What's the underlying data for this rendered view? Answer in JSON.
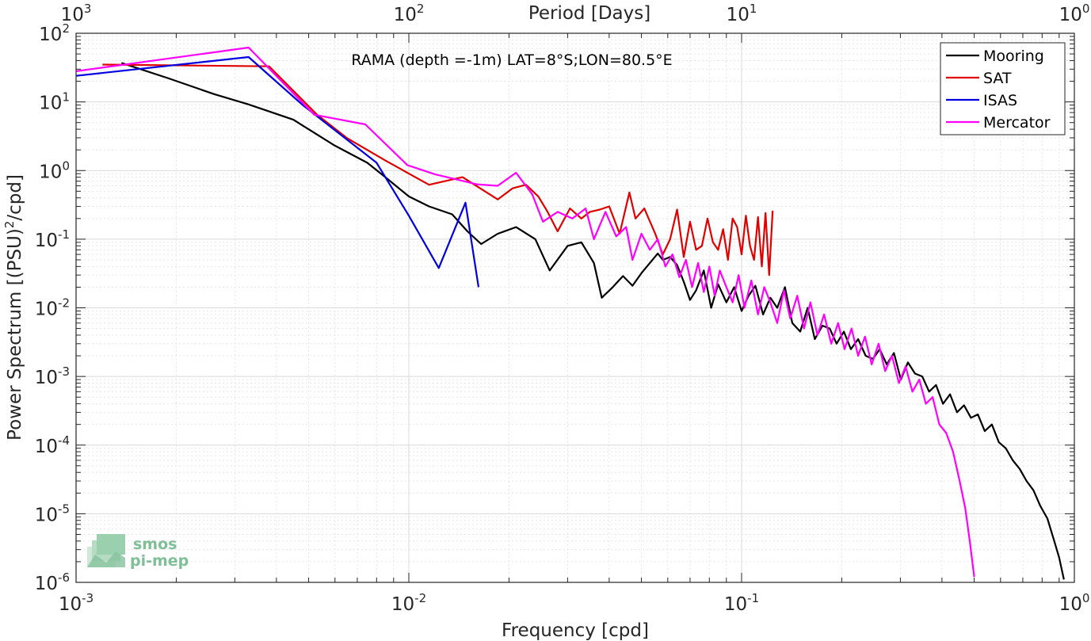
{
  "chart_data": {
    "type": "line",
    "title": "",
    "annotation": "RAMA (depth =-1m) LAT=8°S;LON=80.5°E",
    "xlabel": "Frequency [cpd]",
    "ylabel_pre": "Power Spectrum [(PSU)",
    "ylabel_sup": "2",
    "ylabel_post": "/cpd]",
    "top_xlabel": "Period [Days]",
    "xscale": "log",
    "yscale": "log",
    "xlim": [
      0.001,
      1
    ],
    "ylim": [
      1e-06,
      100
    ],
    "grid": true,
    "legend_position": "top-right",
    "x_ticks": [
      {
        "value": 0.001,
        "base": "10",
        "exp": "-3"
      },
      {
        "value": 0.01,
        "base": "10",
        "exp": "-2"
      },
      {
        "value": 0.1,
        "base": "10",
        "exp": "-1"
      },
      {
        "value": 1,
        "base": "10",
        "exp": "0"
      }
    ],
    "y_ticks": [
      {
        "value": 100,
        "base": "10",
        "exp": "2"
      },
      {
        "value": 10,
        "base": "10",
        "exp": "1"
      },
      {
        "value": 1,
        "base": "10",
        "exp": "0"
      },
      {
        "value": 0.1,
        "base": "10",
        "exp": "-1"
      },
      {
        "value": 0.01,
        "base": "10",
        "exp": "-2"
      },
      {
        "value": 0.001,
        "base": "10",
        "exp": "-3"
      },
      {
        "value": 0.0001,
        "base": "10",
        "exp": "-4"
      },
      {
        "value": 1e-05,
        "base": "10",
        "exp": "-5"
      },
      {
        "value": 1e-06,
        "base": "10",
        "exp": "-6"
      }
    ],
    "top_ticks": [
      {
        "value": 1000,
        "base": "10",
        "exp": "3"
      },
      {
        "value": 100,
        "base": "10",
        "exp": "2"
      },
      {
        "value": 10,
        "base": "10",
        "exp": "1"
      },
      {
        "value": 1,
        "base": "10",
        "exp": "0"
      }
    ],
    "series": [
      {
        "name": "Mooring",
        "color": "#000000",
        "x": [
          0.00137,
          0.0019,
          0.0026,
          0.0033,
          0.0045,
          0.006,
          0.0075,
          0.0085,
          0.01,
          0.0115,
          0.0135,
          0.015,
          0.0165,
          0.0185,
          0.021,
          0.024,
          0.0265,
          0.03,
          0.033,
          0.036,
          0.038,
          0.041,
          0.044,
          0.047,
          0.05,
          0.053,
          0.056,
          0.058,
          0.061,
          0.064,
          0.067,
          0.07,
          0.073,
          0.077,
          0.081,
          0.085,
          0.09,
          0.095,
          0.1,
          0.105,
          0.11,
          0.116,
          0.122,
          0.128,
          0.135,
          0.142,
          0.15,
          0.158,
          0.166,
          0.175,
          0.184,
          0.193,
          0.203,
          0.213,
          0.224,
          0.236,
          0.248,
          0.26,
          0.273,
          0.287,
          0.301,
          0.316,
          0.332,
          0.349,
          0.366,
          0.384,
          0.403,
          0.423,
          0.444,
          0.466,
          0.489,
          0.513,
          0.538,
          0.565,
          0.593,
          0.622,
          0.653,
          0.685,
          0.718,
          0.753,
          0.79,
          0.83,
          0.87,
          0.9,
          0.93
        ],
        "y": [
          37,
          22,
          13,
          9.2,
          5.5,
          2.3,
          1.3,
          0.8,
          0.42,
          0.3,
          0.23,
          0.13,
          0.085,
          0.12,
          0.15,
          0.1,
          0.035,
          0.08,
          0.09,
          0.045,
          0.014,
          0.02,
          0.029,
          0.021,
          0.032,
          0.045,
          0.062,
          0.05,
          0.055,
          0.042,
          0.024,
          0.013,
          0.018,
          0.035,
          0.01,
          0.022,
          0.012,
          0.02,
          0.009,
          0.015,
          0.021,
          0.008,
          0.014,
          0.01,
          0.02,
          0.006,
          0.0045,
          0.01,
          0.0035,
          0.0055,
          0.005,
          0.003,
          0.0045,
          0.0025,
          0.0035,
          0.002,
          0.0018,
          0.0025,
          0.0015,
          0.0022,
          0.0009,
          0.0016,
          0.0011,
          0.001,
          0.0006,
          0.00075,
          0.0004,
          0.00055,
          0.0003,
          0.00038,
          0.00025,
          0.00028,
          0.00016,
          0.0002,
          0.00011,
          9e-05,
          6e-05,
          4.5e-05,
          3e-05,
          2.2e-05,
          1.3e-05,
          8.5e-06,
          4e-06,
          2.3e-06,
          1.1e-06
        ]
      },
      {
        "name": "SAT",
        "color": "#e00000",
        "x": [
          0.0012,
          0.0038,
          0.0053,
          0.0065,
          0.0085,
          0.0115,
          0.0145,
          0.0185,
          0.0205,
          0.0225,
          0.0245,
          0.026,
          0.028,
          0.0305,
          0.033,
          0.035,
          0.0375,
          0.04,
          0.043,
          0.046,
          0.048,
          0.051,
          0.055,
          0.058,
          0.061,
          0.064,
          0.067,
          0.07,
          0.073,
          0.076,
          0.079,
          0.082,
          0.085,
          0.088,
          0.091,
          0.094,
          0.097,
          0.1,
          0.103,
          0.106,
          0.109,
          0.112,
          0.115,
          0.118,
          0.121,
          0.124
        ],
        "y": [
          35,
          33,
          6.5,
          3,
          1.4,
          0.62,
          0.8,
          0.38,
          0.55,
          0.62,
          0.42,
          0.26,
          0.13,
          0.28,
          0.2,
          0.25,
          0.27,
          0.3,
          0.12,
          0.48,
          0.2,
          0.28,
          0.12,
          0.06,
          0.1,
          0.27,
          0.055,
          0.18,
          0.07,
          0.08,
          0.2,
          0.09,
          0.07,
          0.14,
          0.05,
          0.2,
          0.15,
          0.06,
          0.22,
          0.08,
          0.05,
          0.21,
          0.04,
          0.24,
          0.03,
          0.26
        ]
      },
      {
        "name": "ISAS",
        "color": "#0000e0",
        "x": [
          0.001,
          0.0033,
          0.0048,
          0.008,
          0.01,
          0.0123,
          0.0148,
          0.0162
        ],
        "y": [
          24,
          45,
          9,
          1.3,
          0.22,
          0.038,
          0.34,
          0.02
        ]
      },
      {
        "name": "Mercator",
        "color": "#ff00ff",
        "x": [
          0.001,
          0.0033,
          0.0052,
          0.0074,
          0.0099,
          0.012,
          0.016,
          0.0185,
          0.021,
          0.0235,
          0.0253,
          0.028,
          0.031,
          0.034,
          0.036,
          0.039,
          0.042,
          0.045,
          0.047,
          0.05,
          0.053,
          0.056,
          0.059,
          0.062,
          0.065,
          0.068,
          0.071,
          0.074,
          0.077,
          0.08,
          0.083,
          0.086,
          0.09,
          0.094,
          0.098,
          0.102,
          0.107,
          0.112,
          0.117,
          0.122,
          0.128,
          0.134,
          0.14,
          0.147,
          0.154,
          0.161,
          0.169,
          0.177,
          0.186,
          0.195,
          0.204,
          0.214,
          0.224,
          0.235,
          0.246,
          0.258,
          0.27,
          0.283,
          0.297,
          0.311,
          0.326,
          0.342,
          0.358,
          0.375,
          0.393,
          0.412,
          0.432,
          0.452,
          0.47,
          0.485,
          0.5
        ],
        "y": [
          28,
          62,
          6.5,
          4.7,
          1.2,
          0.88,
          0.63,
          0.6,
          0.93,
          0.45,
          0.18,
          0.25,
          0.2,
          0.28,
          0.1,
          0.25,
          0.11,
          0.15,
          0.05,
          0.12,
          0.07,
          0.1,
          0.04,
          0.06,
          0.028,
          0.05,
          0.02,
          0.045,
          0.017,
          0.04,
          0.015,
          0.035,
          0.02,
          0.012,
          0.03,
          0.01,
          0.025,
          0.008,
          0.02,
          0.012,
          0.006,
          0.018,
          0.007,
          0.015,
          0.005,
          0.012,
          0.004,
          0.008,
          0.003,
          0.006,
          0.0025,
          0.005,
          0.002,
          0.0038,
          0.0015,
          0.003,
          0.0012,
          0.002,
          0.0008,
          0.0014,
          0.0006,
          0.0009,
          0.0004,
          0.0005,
          0.0002,
          0.00015,
          8e-05,
          3e-05,
          1.2e-05,
          4e-06,
          1.2e-06
        ]
      }
    ]
  },
  "logo": {
    "line1": "smos",
    "line2": "pi-mep",
    "color": "#7fbf98"
  }
}
